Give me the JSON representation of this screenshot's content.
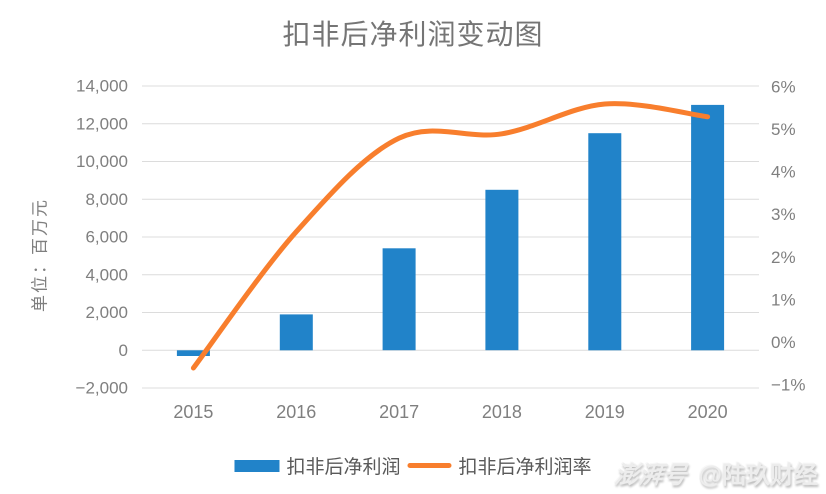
{
  "title": "扣非后净利润变动图",
  "y_axis_title": "单位：百万元",
  "legend": [
    {
      "label": "扣非后净利润",
      "marker": "bar-swatch",
      "color": "#2183C9"
    },
    {
      "label": "扣非后净利润率",
      "marker": "line-swatch",
      "color": "#F87E2D"
    }
  ],
  "watermark": {
    "logo": "澎湃号",
    "account": "@陆玖财经"
  },
  "colors": {
    "bar_blue": "#2183C9",
    "line_orange": "#F87E2D",
    "gridline": "#DCDCDC",
    "axis_text": "#7F7F7F",
    "title_text": "#757575",
    "legend_text": "#595959"
  },
  "chart_data": {
    "type": "bar",
    "subtype": "bar-line-combo",
    "title": "扣非后净利润变动图",
    "categories": [
      "2015",
      "2016",
      "2017",
      "2018",
      "2019",
      "2020"
    ],
    "series": [
      {
        "name": "扣非后净利润",
        "type": "bar",
        "axis": "left",
        "unit": "百万元",
        "color": "#2183C9",
        "values": [
          -300,
          1900,
          5400,
          8500,
          11500,
          13000
        ]
      },
      {
        "name": "扣非后净利润率",
        "type": "line",
        "axis": "right",
        "unit": "%",
        "color": "#F87E2D",
        "values": [
          -0.6,
          2.6,
          4.8,
          4.9,
          5.6,
          5.3
        ]
      }
    ],
    "left_axis": {
      "title": "单位：百万元",
      "min": -2000,
      "max": 14000,
      "step": 2000,
      "tick_labels": [
        "14,000",
        "12,000",
        "10,000",
        "8,000",
        "6,000",
        "4,000",
        "2,000",
        "0",
        "−2,000"
      ]
    },
    "right_axis": {
      "min": -1,
      "max": 6,
      "step": 1,
      "tick_labels": [
        "6%",
        "5%",
        "4%",
        "3%",
        "2%",
        "1%",
        "0%",
        "−1%"
      ]
    },
    "grid": true,
    "legend_position": "bottom"
  }
}
